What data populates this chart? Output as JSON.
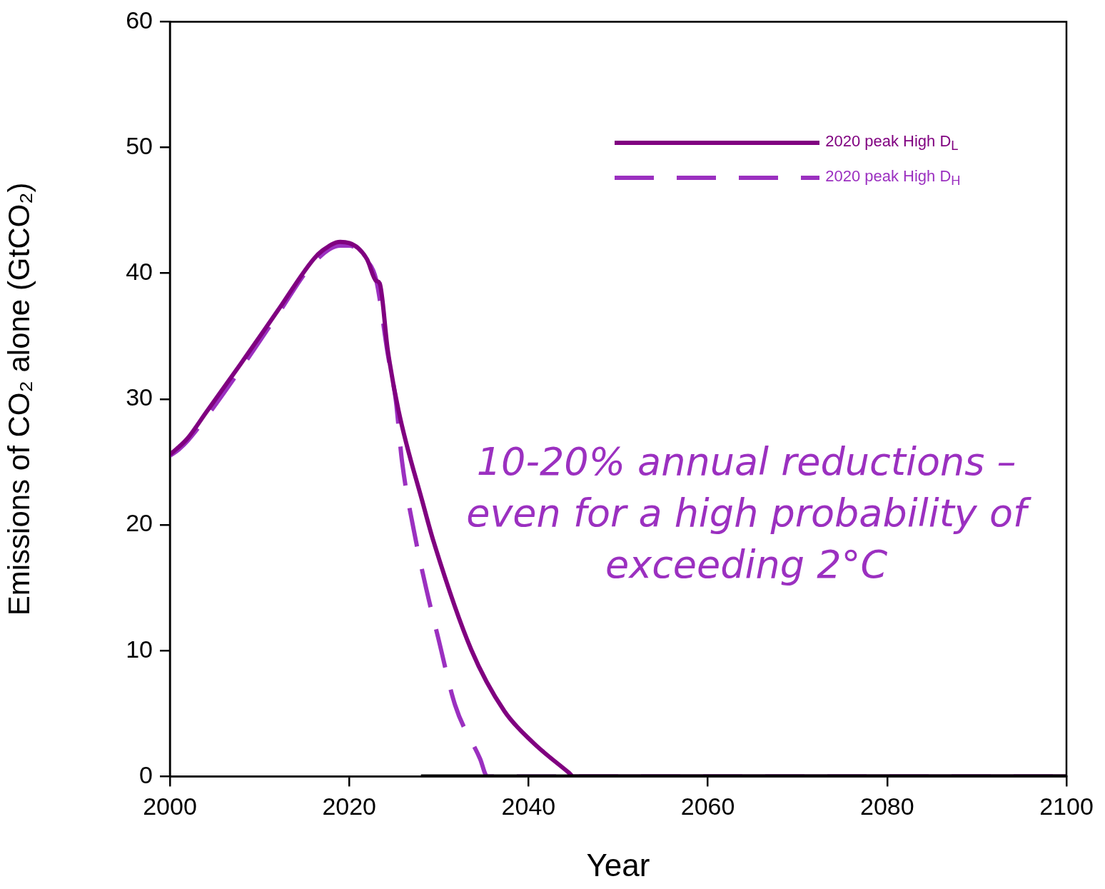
{
  "chart_data": {
    "type": "line",
    "xlabel": "Year",
    "ylabel": "Emissions of CO₂ alone (GtCO₂)",
    "xlim": [
      2000,
      2100
    ],
    "xticks": [
      2000,
      2020,
      2040,
      2060,
      2080,
      2100
    ],
    "ylim": [
      0,
      60
    ],
    "yticks": [
      0,
      10,
      20,
      30,
      40,
      50,
      60
    ],
    "grid": false,
    "legend": "top right",
    "marker": "none",
    "annotations": [
      "10-20% annual reductions –\neven for a high probability of\nexceeding 2°C"
    ],
    "series": [
      {
        "color": "#000000",
        "line_style": "solid",
        "x": [
          2028,
          2100
        ],
        "values": [
          0,
          0
        ]
      },
      {
        "name": "2020 peak High D$_{L}$",
        "color": "#800080",
        "line_style": "solid",
        "x": [
          2000,
          2001,
          2002,
          2004,
          2008,
          2012,
          2016,
          2017,
          2019,
          2020,
          2021,
          2022,
          2023,
          2023.4,
          2024.3,
          2025.5,
          2028.3,
          2029.4,
          2033.6,
          2037.3,
          2040.5,
          2044.5,
          2045,
          2100
        ],
        "values": [
          25.6,
          26.2,
          26.9,
          28.9,
          32.9,
          37.0,
          41.1,
          41.8,
          42.5,
          42.4,
          42.0,
          41.1,
          39.4,
          39.2,
          33.9,
          29.1,
          21.5,
          18.7,
          10.1,
          5.2,
          2.7,
          0.3,
          0,
          0
        ]
      },
      {
        "name": "2020 peak High D$_{H}$",
        "color": "#9b30c0",
        "line_style": "dashed",
        "x": [
          2000,
          2001,
          2002,
          2004,
          2008,
          2012,
          2016,
          2019,
          2020,
          2022,
          2023,
          2024.3,
          2025.2,
          2025.9,
          2027.2,
          2028.6,
          2029.9,
          2031.8,
          2034.6,
          2035.4,
          2100
        ],
        "values": [
          25.5,
          26.0,
          26.7,
          28.5,
          32.5,
          36.7,
          40.8,
          42.2,
          42.2,
          41.0,
          39.5,
          33.6,
          29.9,
          25.0,
          19.6,
          14.9,
          11.1,
          5.7,
          1.4,
          0,
          0
        ]
      }
    ]
  }
}
